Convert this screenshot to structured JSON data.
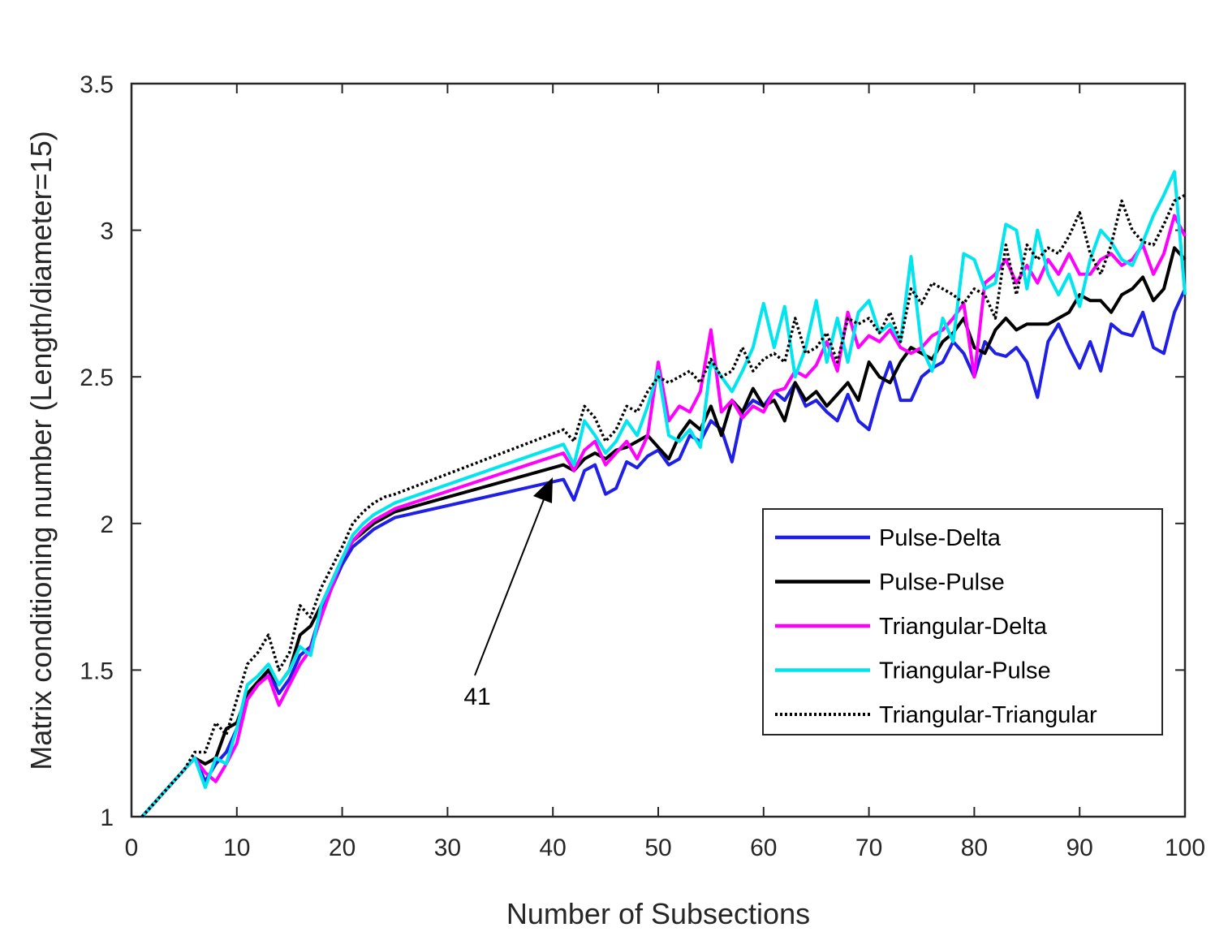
{
  "chart_data": {
    "type": "line",
    "title": "",
    "xlabel": "Number of Subsections",
    "ylabel": "Matrix conditioning number (Length/diameter=15)",
    "xlim": [
      0,
      100
    ],
    "ylim": [
      1,
      3.5
    ],
    "xticks": [
      0,
      10,
      20,
      30,
      40,
      50,
      60,
      70,
      80,
      90,
      100
    ],
    "yticks": [
      1,
      1.5,
      2,
      2.5,
      3,
      3.5
    ],
    "xtick_labels": [
      "0",
      "10",
      "20",
      "30",
      "40",
      "50",
      "60",
      "70",
      "80",
      "90",
      "100"
    ],
    "ytick_labels": [
      "1",
      "1.5",
      "2",
      "2.5",
      "3",
      "3.5"
    ],
    "grid": false,
    "legend_position": "lower-right",
    "annotation": {
      "text": "41",
      "points_to": [
        41,
        2.14
      ]
    },
    "series": [
      {
        "name": "Pulse-Delta",
        "color": "#1f1fe6",
        "style": "solid",
        "x": [
          1,
          2,
          3,
          4,
          5,
          6,
          7,
          8,
          9,
          10,
          11,
          12,
          13,
          14,
          15,
          16,
          17,
          18,
          19,
          20,
          21,
          22,
          23,
          24,
          25,
          41,
          42,
          43,
          44,
          45,
          46,
          47,
          48,
          49,
          50,
          51,
          52,
          53,
          54,
          55,
          56,
          57,
          58,
          59,
          60,
          61,
          62,
          63,
          64,
          65,
          66,
          67,
          68,
          69,
          70,
          71,
          72,
          73,
          74,
          75,
          76,
          77,
          78,
          79,
          80,
          81,
          82,
          83,
          84,
          85,
          86,
          87,
          88,
          89,
          90,
          91,
          92,
          93,
          94,
          95,
          96,
          97,
          98,
          99,
          100
        ],
        "y": [
          1.0,
          1.04,
          1.08,
          1.12,
          1.16,
          1.2,
          1.12,
          1.18,
          1.22,
          1.3,
          1.4,
          1.45,
          1.5,
          1.42,
          1.47,
          1.55,
          1.58,
          1.7,
          1.78,
          1.86,
          1.92,
          1.95,
          1.98,
          2.0,
          2.02,
          2.15,
          2.08,
          2.18,
          2.2,
          2.1,
          2.12,
          2.21,
          2.19,
          2.23,
          2.25,
          2.2,
          2.22,
          2.3,
          2.28,
          2.35,
          2.32,
          2.21,
          2.38,
          2.42,
          2.4,
          2.45,
          2.42,
          2.48,
          2.4,
          2.42,
          2.38,
          2.35,
          2.44,
          2.35,
          2.32,
          2.45,
          2.55,
          2.42,
          2.42,
          2.5,
          2.53,
          2.55,
          2.62,
          2.58,
          2.5,
          2.62,
          2.58,
          2.57,
          2.6,
          2.55,
          2.43,
          2.62,
          2.68,
          2.6,
          2.53,
          2.62,
          2.52,
          2.68,
          2.65,
          2.64,
          2.72,
          2.6,
          2.58,
          2.72,
          2.8
        ]
      },
      {
        "name": "Pulse-Pulse",
        "color": "#000000",
        "style": "solid",
        "x": [
          1,
          2,
          3,
          4,
          5,
          6,
          7,
          8,
          9,
          10,
          11,
          12,
          13,
          14,
          15,
          16,
          17,
          18,
          19,
          20,
          21,
          22,
          23,
          24,
          25,
          41,
          42,
          43,
          44,
          45,
          46,
          47,
          48,
          49,
          50,
          51,
          52,
          53,
          54,
          55,
          56,
          57,
          58,
          59,
          60,
          61,
          62,
          63,
          64,
          65,
          66,
          67,
          68,
          69,
          70,
          71,
          72,
          73,
          74,
          75,
          76,
          77,
          78,
          79,
          80,
          81,
          82,
          83,
          84,
          85,
          86,
          87,
          88,
          89,
          90,
          91,
          92,
          93,
          94,
          95,
          96,
          97,
          98,
          99,
          100
        ],
        "y": [
          1.0,
          1.04,
          1.08,
          1.12,
          1.16,
          1.2,
          1.18,
          1.2,
          1.3,
          1.32,
          1.42,
          1.46,
          1.5,
          1.45,
          1.5,
          1.62,
          1.65,
          1.72,
          1.8,
          1.88,
          1.94,
          1.97,
          2.0,
          2.02,
          2.04,
          2.2,
          2.18,
          2.22,
          2.24,
          2.22,
          2.25,
          2.26,
          2.28,
          2.3,
          2.26,
          2.22,
          2.3,
          2.35,
          2.32,
          2.4,
          2.3,
          2.42,
          2.38,
          2.46,
          2.4,
          2.42,
          2.35,
          2.48,
          2.42,
          2.45,
          2.4,
          2.44,
          2.48,
          2.42,
          2.55,
          2.5,
          2.48,
          2.55,
          2.6,
          2.58,
          2.56,
          2.62,
          2.65,
          2.7,
          2.6,
          2.58,
          2.66,
          2.7,
          2.66,
          2.68,
          2.68,
          2.68,
          2.7,
          2.72,
          2.78,
          2.76,
          2.76,
          2.72,
          2.78,
          2.8,
          2.84,
          2.76,
          2.8,
          2.94,
          2.9
        ]
      },
      {
        "name": "Triangular-Delta",
        "color": "#ff00ff",
        "style": "solid",
        "x": [
          1,
          2,
          3,
          4,
          5,
          6,
          7,
          8,
          9,
          10,
          11,
          12,
          13,
          14,
          15,
          16,
          17,
          18,
          19,
          20,
          21,
          22,
          23,
          24,
          25,
          41,
          42,
          43,
          44,
          45,
          46,
          47,
          48,
          49,
          50,
          51,
          52,
          53,
          54,
          55,
          56,
          57,
          58,
          59,
          60,
          61,
          62,
          63,
          64,
          65,
          66,
          67,
          68,
          69,
          70,
          71,
          72,
          73,
          74,
          75,
          76,
          77,
          78,
          79,
          80,
          81,
          82,
          83,
          84,
          85,
          86,
          87,
          88,
          89,
          90,
          91,
          92,
          93,
          94,
          95,
          96,
          97,
          98,
          99,
          100
        ],
        "y": [
          1.0,
          1.04,
          1.08,
          1.12,
          1.16,
          1.2,
          1.15,
          1.12,
          1.18,
          1.25,
          1.4,
          1.45,
          1.48,
          1.38,
          1.45,
          1.52,
          1.57,
          1.68,
          1.78,
          1.88,
          1.94,
          1.98,
          2.01,
          2.03,
          2.05,
          2.24,
          2.18,
          2.25,
          2.28,
          2.2,
          2.24,
          2.28,
          2.22,
          2.3,
          2.55,
          2.35,
          2.4,
          2.38,
          2.45,
          2.66,
          2.38,
          2.42,
          2.36,
          2.4,
          2.38,
          2.45,
          2.46,
          2.52,
          2.5,
          2.54,
          2.62,
          2.52,
          2.72,
          2.6,
          2.64,
          2.62,
          2.66,
          2.6,
          2.58,
          2.6,
          2.64,
          2.66,
          2.7,
          2.75,
          2.5,
          2.82,
          2.85,
          2.9,
          2.82,
          2.88,
          2.82,
          2.9,
          2.85,
          2.92,
          2.85,
          2.85,
          2.9,
          2.92,
          2.88,
          2.9,
          2.95,
          2.85,
          2.92,
          3.05,
          2.98
        ]
      },
      {
        "name": "Triangular-Pulse",
        "color": "#00e5ee",
        "style": "solid",
        "x": [
          1,
          2,
          3,
          4,
          5,
          6,
          7,
          8,
          9,
          10,
          11,
          12,
          13,
          14,
          15,
          16,
          17,
          18,
          19,
          20,
          21,
          22,
          23,
          24,
          25,
          41,
          42,
          43,
          44,
          45,
          46,
          47,
          48,
          49,
          50,
          51,
          52,
          53,
          54,
          55,
          56,
          57,
          58,
          59,
          60,
          61,
          62,
          63,
          64,
          65,
          66,
          67,
          68,
          69,
          70,
          71,
          72,
          73,
          74,
          75,
          76,
          77,
          78,
          79,
          80,
          81,
          82,
          83,
          84,
          85,
          86,
          87,
          88,
          89,
          90,
          91,
          92,
          93,
          94,
          95,
          96,
          97,
          98,
          99,
          100
        ],
        "y": [
          1.0,
          1.04,
          1.08,
          1.12,
          1.16,
          1.2,
          1.1,
          1.2,
          1.18,
          1.3,
          1.45,
          1.48,
          1.52,
          1.45,
          1.5,
          1.58,
          1.55,
          1.72,
          1.8,
          1.88,
          1.96,
          2.0,
          2.03,
          2.05,
          2.07,
          2.27,
          2.2,
          2.35,
          2.3,
          2.24,
          2.28,
          2.35,
          2.3,
          2.4,
          2.52,
          2.3,
          2.28,
          2.32,
          2.26,
          2.55,
          2.5,
          2.45,
          2.52,
          2.6,
          2.75,
          2.6,
          2.74,
          2.5,
          2.6,
          2.76,
          2.55,
          2.7,
          2.55,
          2.72,
          2.76,
          2.65,
          2.68,
          2.62,
          2.91,
          2.6,
          2.52,
          2.7,
          2.62,
          2.92,
          2.9,
          2.8,
          2.82,
          3.02,
          3.0,
          2.8,
          3.0,
          2.85,
          2.78,
          2.85,
          2.74,
          2.9,
          3.0,
          2.96,
          2.9,
          2.88,
          2.96,
          3.05,
          3.12,
          3.2,
          2.78
        ]
      },
      {
        "name": "Triangular-Triangular",
        "color": "#000000",
        "style": "dotted",
        "x": [
          1,
          2,
          3,
          4,
          5,
          6,
          7,
          8,
          9,
          10,
          11,
          12,
          13,
          14,
          15,
          16,
          17,
          18,
          19,
          20,
          21,
          22,
          23,
          24,
          25,
          41,
          42,
          43,
          44,
          45,
          46,
          47,
          48,
          49,
          50,
          51,
          52,
          53,
          54,
          55,
          56,
          57,
          58,
          59,
          60,
          61,
          62,
          63,
          64,
          65,
          66,
          67,
          68,
          69,
          70,
          71,
          72,
          73,
          74,
          75,
          76,
          77,
          78,
          79,
          80,
          81,
          82,
          83,
          84,
          85,
          86,
          87,
          88,
          89,
          90,
          91,
          92,
          93,
          94,
          95,
          96,
          97,
          98,
          99,
          100
        ],
        "y": [
          1.0,
          1.04,
          1.08,
          1.12,
          1.16,
          1.22,
          1.22,
          1.32,
          1.28,
          1.4,
          1.52,
          1.56,
          1.62,
          1.5,
          1.56,
          1.72,
          1.68,
          1.78,
          1.85,
          1.92,
          2.0,
          2.04,
          2.07,
          2.09,
          2.1,
          2.32,
          2.28,
          2.4,
          2.36,
          2.28,
          2.32,
          2.4,
          2.38,
          2.45,
          2.5,
          2.48,
          2.5,
          2.52,
          2.48,
          2.56,
          2.5,
          2.52,
          2.6,
          2.52,
          2.56,
          2.58,
          2.55,
          2.7,
          2.58,
          2.6,
          2.65,
          2.55,
          2.7,
          2.68,
          2.7,
          2.65,
          2.72,
          2.62,
          2.8,
          2.75,
          2.82,
          2.8,
          2.78,
          2.75,
          2.8,
          2.78,
          2.7,
          2.95,
          2.78,
          2.95,
          2.9,
          2.94,
          2.92,
          2.98,
          3.06,
          2.92,
          2.85,
          2.95,
          3.1,
          3.0,
          2.96,
          2.95,
          3.02,
          3.1,
          3.12
        ]
      }
    ]
  }
}
